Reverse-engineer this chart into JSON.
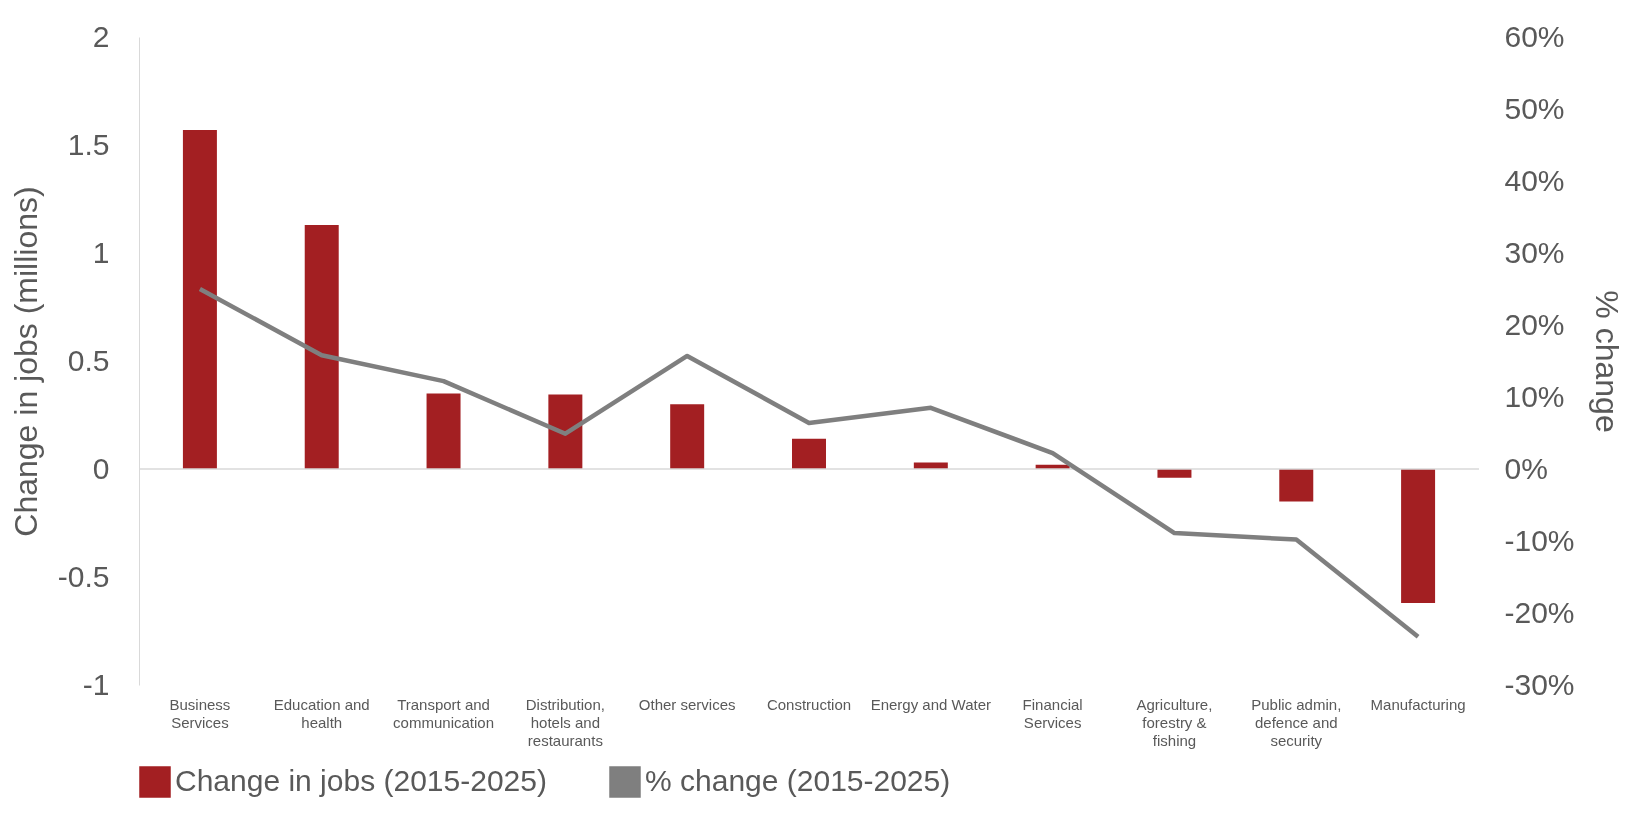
{
  "chart_data": {
    "type": "bar",
    "ylabel": "Change in jobs (millions)",
    "y2label": "% change",
    "categories": [
      "Business Services",
      "Education and health",
      "Transport and communication",
      "Distribution, hotels and restaurants",
      "Other services",
      "Construction",
      "Energy and Water",
      "Financial Services",
      "Agriculture, forestry & fishing",
      "Public admin, defence and security",
      "Manufacturing"
    ],
    "series": [
      {
        "name": "Change in jobs (2015-2025)",
        "color": "#a31f22",
        "values": [
          1.57,
          1.13,
          0.35,
          0.345,
          0.3,
          0.14,
          0.03,
          0.02,
          -0.04,
          -0.15,
          -0.62
        ]
      },
      {
        "name": "% change (2015-2025)",
        "type": "line",
        "axis": "y2",
        "color": "#7f7f7f",
        "values": [
          25,
          15.8,
          12.2,
          4.9,
          15.7,
          6.4,
          8.5,
          2.2,
          -8.9,
          -9.8,
          -23.3
        ]
      }
    ],
    "ylim": [
      -1,
      2
    ],
    "yticks": [
      -1,
      -0.5,
      0,
      0.5,
      1,
      1.5,
      2
    ],
    "y2lim": [
      -30,
      60
    ],
    "y2ticks": [
      {
        "value": -30,
        "label": "-30%"
      },
      {
        "value": -20,
        "label": "-20%"
      },
      {
        "value": -10,
        "label": "-10%"
      },
      {
        "value": 0,
        "label": "0%"
      },
      {
        "value": 10,
        "label": "10%"
      },
      {
        "value": 20,
        "label": "20%"
      },
      {
        "value": 30,
        "label": "30%"
      },
      {
        "value": 40,
        "label": "40%"
      },
      {
        "value": 50,
        "label": "50%"
      },
      {
        "value": 60,
        "label": "60%"
      }
    ],
    "ref_lines": [
      {
        "axis": "y",
        "value": 0
      }
    ],
    "grid": false,
    "legend": "bottom",
    "marker": "none",
    "line_style": "solid"
  }
}
